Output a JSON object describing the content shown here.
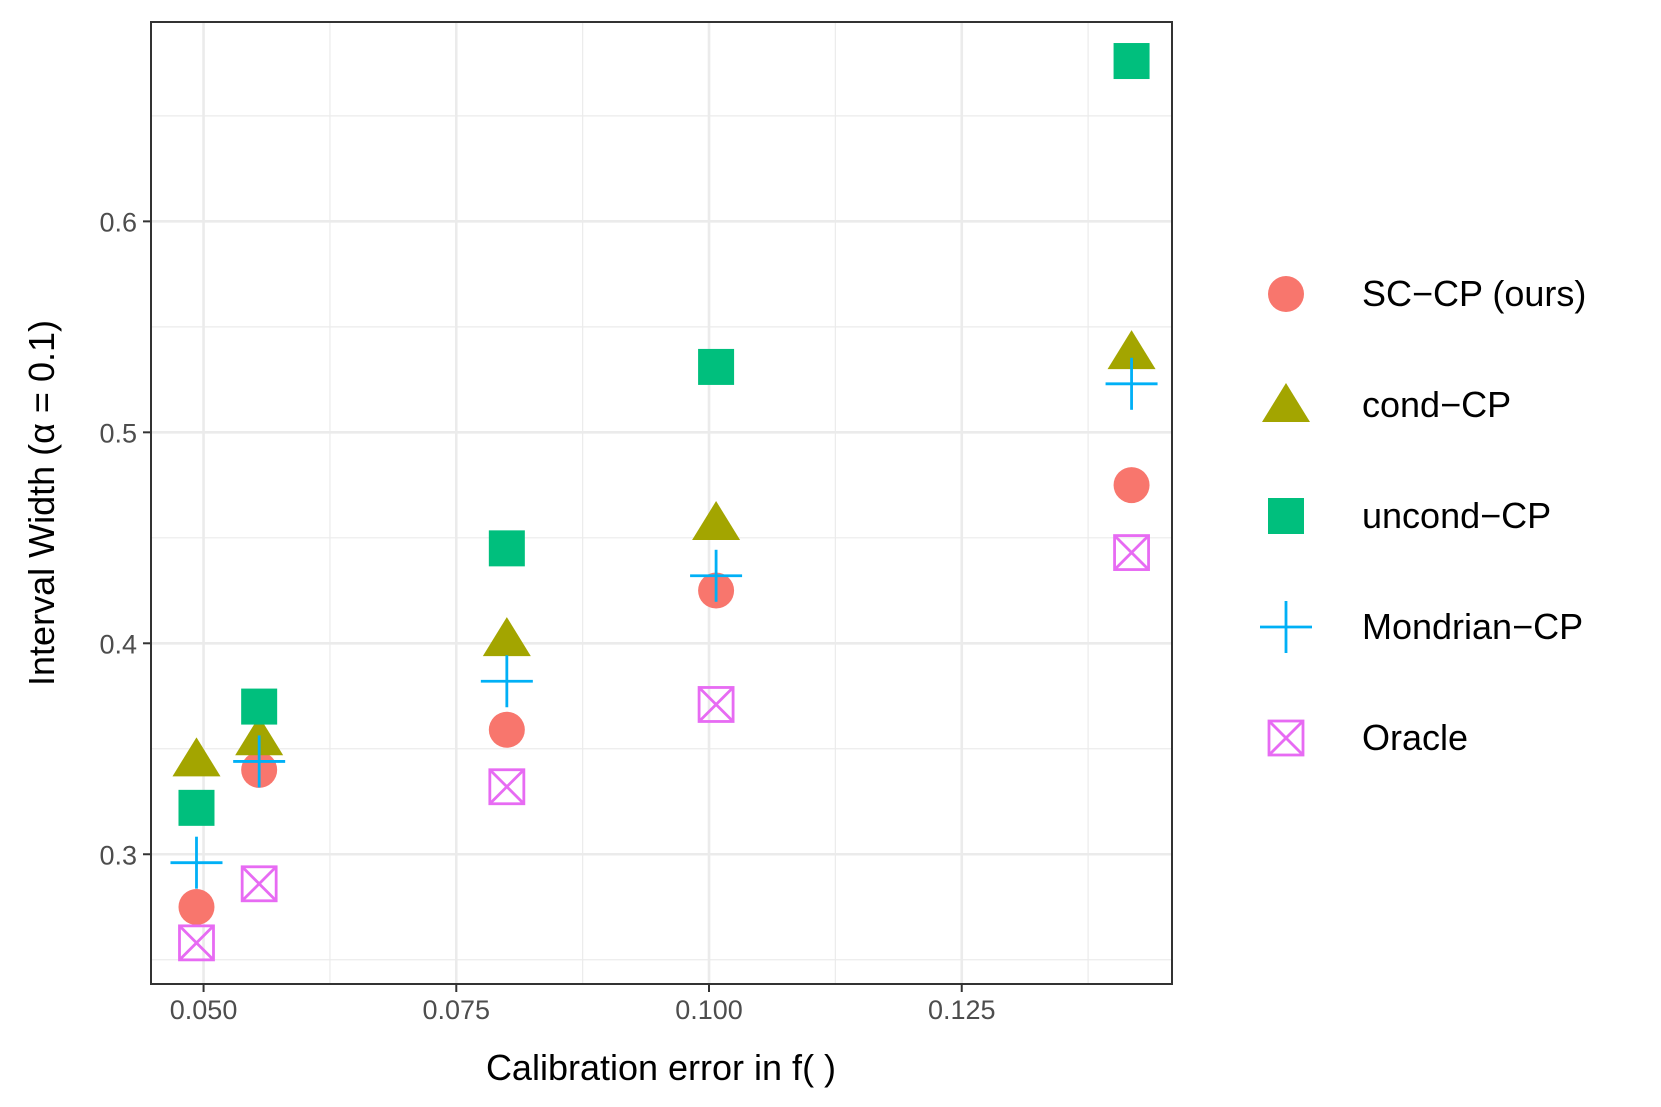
{
  "chart_data": {
    "type": "scatter",
    "title": "",
    "xlabel": "Calibration error in f( )",
    "ylabel": "Interval Width (α = 0.1)",
    "xlim": [
      0.0448,
      0.1458
    ],
    "ylim": [
      0.2385,
      0.6945
    ],
    "x_ticks": [
      0.05,
      0.075,
      0.1,
      0.125
    ],
    "x_tick_labels": [
      "0.050",
      "0.075",
      "0.100",
      "0.125"
    ],
    "x_minor_ticks": [
      0.0625,
      0.0875,
      0.1125,
      0.1375
    ],
    "y_ticks": [
      0.3,
      0.4,
      0.5,
      0.6
    ],
    "y_tick_labels": [
      "0.3",
      "0.4",
      "0.5",
      "0.6"
    ],
    "y_minor_ticks": [
      0.25,
      0.35,
      0.45,
      0.55,
      0.65
    ],
    "grid": true,
    "legend_position": "right",
    "series": [
      {
        "name": "SC−CP (ours)",
        "shape": "circle",
        "color": "#F8766D",
        "x": [
          0.0493,
          0.0555,
          0.08,
          0.1007,
          0.1418
        ],
        "y": [
          0.275,
          0.34,
          0.359,
          0.425,
          0.475
        ]
      },
      {
        "name": "cond−CP",
        "shape": "triangle",
        "color": "#A3A500",
        "x": [
          0.0493,
          0.0555,
          0.08,
          0.1007,
          0.1418
        ],
        "y": [
          0.345,
          0.355,
          0.402,
          0.457,
          0.538
        ]
      },
      {
        "name": "uncond−CP",
        "shape": "square",
        "color": "#00BF7D",
        "x": [
          0.0493,
          0.0555,
          0.08,
          0.1007,
          0.1418
        ],
        "y": [
          0.322,
          0.37,
          0.445,
          0.531,
          0.676
        ]
      },
      {
        "name": "Mondrian−CP",
        "shape": "plus",
        "color": "#00B0F6",
        "x": [
          0.0493,
          0.0555,
          0.08,
          0.1007,
          0.1418
        ],
        "y": [
          0.296,
          0.344,
          0.382,
          0.432,
          0.523
        ]
      },
      {
        "name": "Oracle",
        "shape": "boxcross",
        "color": "#E76BF3",
        "x": [
          0.0493,
          0.0555,
          0.08,
          0.1007,
          0.1418
        ],
        "y": [
          0.258,
          0.286,
          0.332,
          0.371,
          0.443
        ]
      }
    ]
  }
}
